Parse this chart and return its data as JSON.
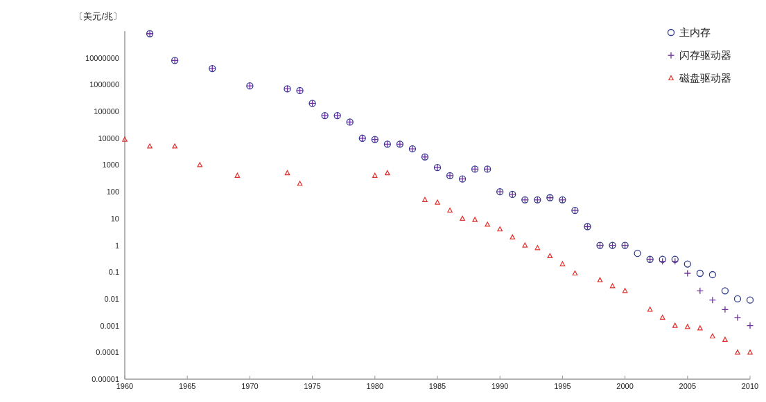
{
  "chart_data": {
    "type": "scatter",
    "ylabel": "〔美元/兆〕",
    "log": "y",
    "grid": false,
    "legend": "top right",
    "xlim": [
      1960,
      2010
    ],
    "xticks": [
      1960,
      1965,
      1970,
      1975,
      1980,
      1985,
      1990,
      1995,
      2000,
      2005,
      2010
    ],
    "ylim": [
      1e-05,
      100000000
    ],
    "yticks": [
      {
        "value": 1e-05,
        "label": "0.00001"
      },
      0.0001,
      0.001,
      0.01,
      0.1,
      1,
      10,
      100,
      1000,
      10000,
      100000,
      1000000,
      10000000
    ],
    "series": [
      {
        "name": "主内存",
        "color": "#2e3a8c",
        "marker": "circle",
        "x": [
          1962,
          1964,
          1967,
          1970,
          1973,
          1974,
          1975,
          1976,
          1977,
          1978,
          1979,
          1980,
          1981,
          1982,
          1983,
          1984,
          1985,
          1986,
          1987,
          1988,
          1989,
          1990,
          1991,
          1992,
          1993,
          1994,
          1995,
          1996,
          1997,
          1998,
          1999,
          2000,
          2001,
          2002,
          2003,
          2004,
          2005,
          2006,
          2007,
          2008,
          2009,
          2010
        ],
        "values": [
          80000000,
          8000000,
          4000000,
          900000,
          700000,
          600000,
          200000,
          70000,
          70000,
          40000,
          10000,
          9000,
          6000,
          6000,
          4000,
          2000,
          800,
          400,
          300,
          700,
          700,
          100,
          80,
          50,
          50,
          60,
          50,
          20,
          5,
          1,
          1,
          1,
          0.5,
          0.3,
          0.3,
          0.3,
          0.2,
          0.09,
          0.08,
          0.02,
          0.01,
          0.009
        ]
      },
      {
        "name": "闪存驱动器",
        "color": "#7030a0",
        "marker": "cross",
        "x": [
          1962,
          1964,
          1967,
          1970,
          1973,
          1974,
          1975,
          1976,
          1977,
          1978,
          1979,
          1980,
          1981,
          1982,
          1983,
          1984,
          1985,
          1986,
          1987,
          1988,
          1989,
          1990,
          1991,
          1992,
          1993,
          1994,
          1995,
          1996,
          1997,
          1998,
          1999,
          2000,
          2002,
          2003,
          2004,
          2005,
          2006,
          2007,
          2008,
          2009,
          2010
        ],
        "values": [
          80000000,
          8000000,
          4000000,
          900000,
          700000,
          600000,
          200000,
          70000,
          70000,
          40000,
          10000,
          9000,
          6000,
          6000,
          4000,
          2000,
          800,
          400,
          300,
          700,
          700,
          100,
          80,
          50,
          50,
          60,
          50,
          20,
          5,
          1,
          1,
          1,
          0.3,
          0.25,
          0.25,
          0.09,
          0.02,
          0.009,
          0.004,
          0.002,
          0.001
        ]
      },
      {
        "name": "磁盘驱动器",
        "color": "#e0302c",
        "marker": "triangle",
        "x": [
          1960,
          1962,
          1964,
          1966,
          1969,
          1973,
          1974,
          1980,
          1981,
          1984,
          1985,
          1986,
          1987,
          1988,
          1989,
          1990,
          1991,
          1992,
          1993,
          1994,
          1995,
          1996,
          1998,
          1999,
          2000,
          2002,
          2003,
          2004,
          2005,
          2006,
          2007,
          2008,
          2009,
          2010
        ],
        "values": [
          9000,
          5000,
          5000,
          1000,
          400,
          500,
          200,
          400,
          500,
          50,
          40,
          20,
          10,
          9,
          6,
          4,
          2,
          1,
          0.8,
          0.4,
          0.2,
          0.09,
          0.05,
          0.03,
          0.02,
          0.004,
          0.002,
          0.001,
          0.0009,
          0.0008,
          0.0004,
          0.0003,
          0.0001,
          0.0001
        ]
      }
    ]
  }
}
